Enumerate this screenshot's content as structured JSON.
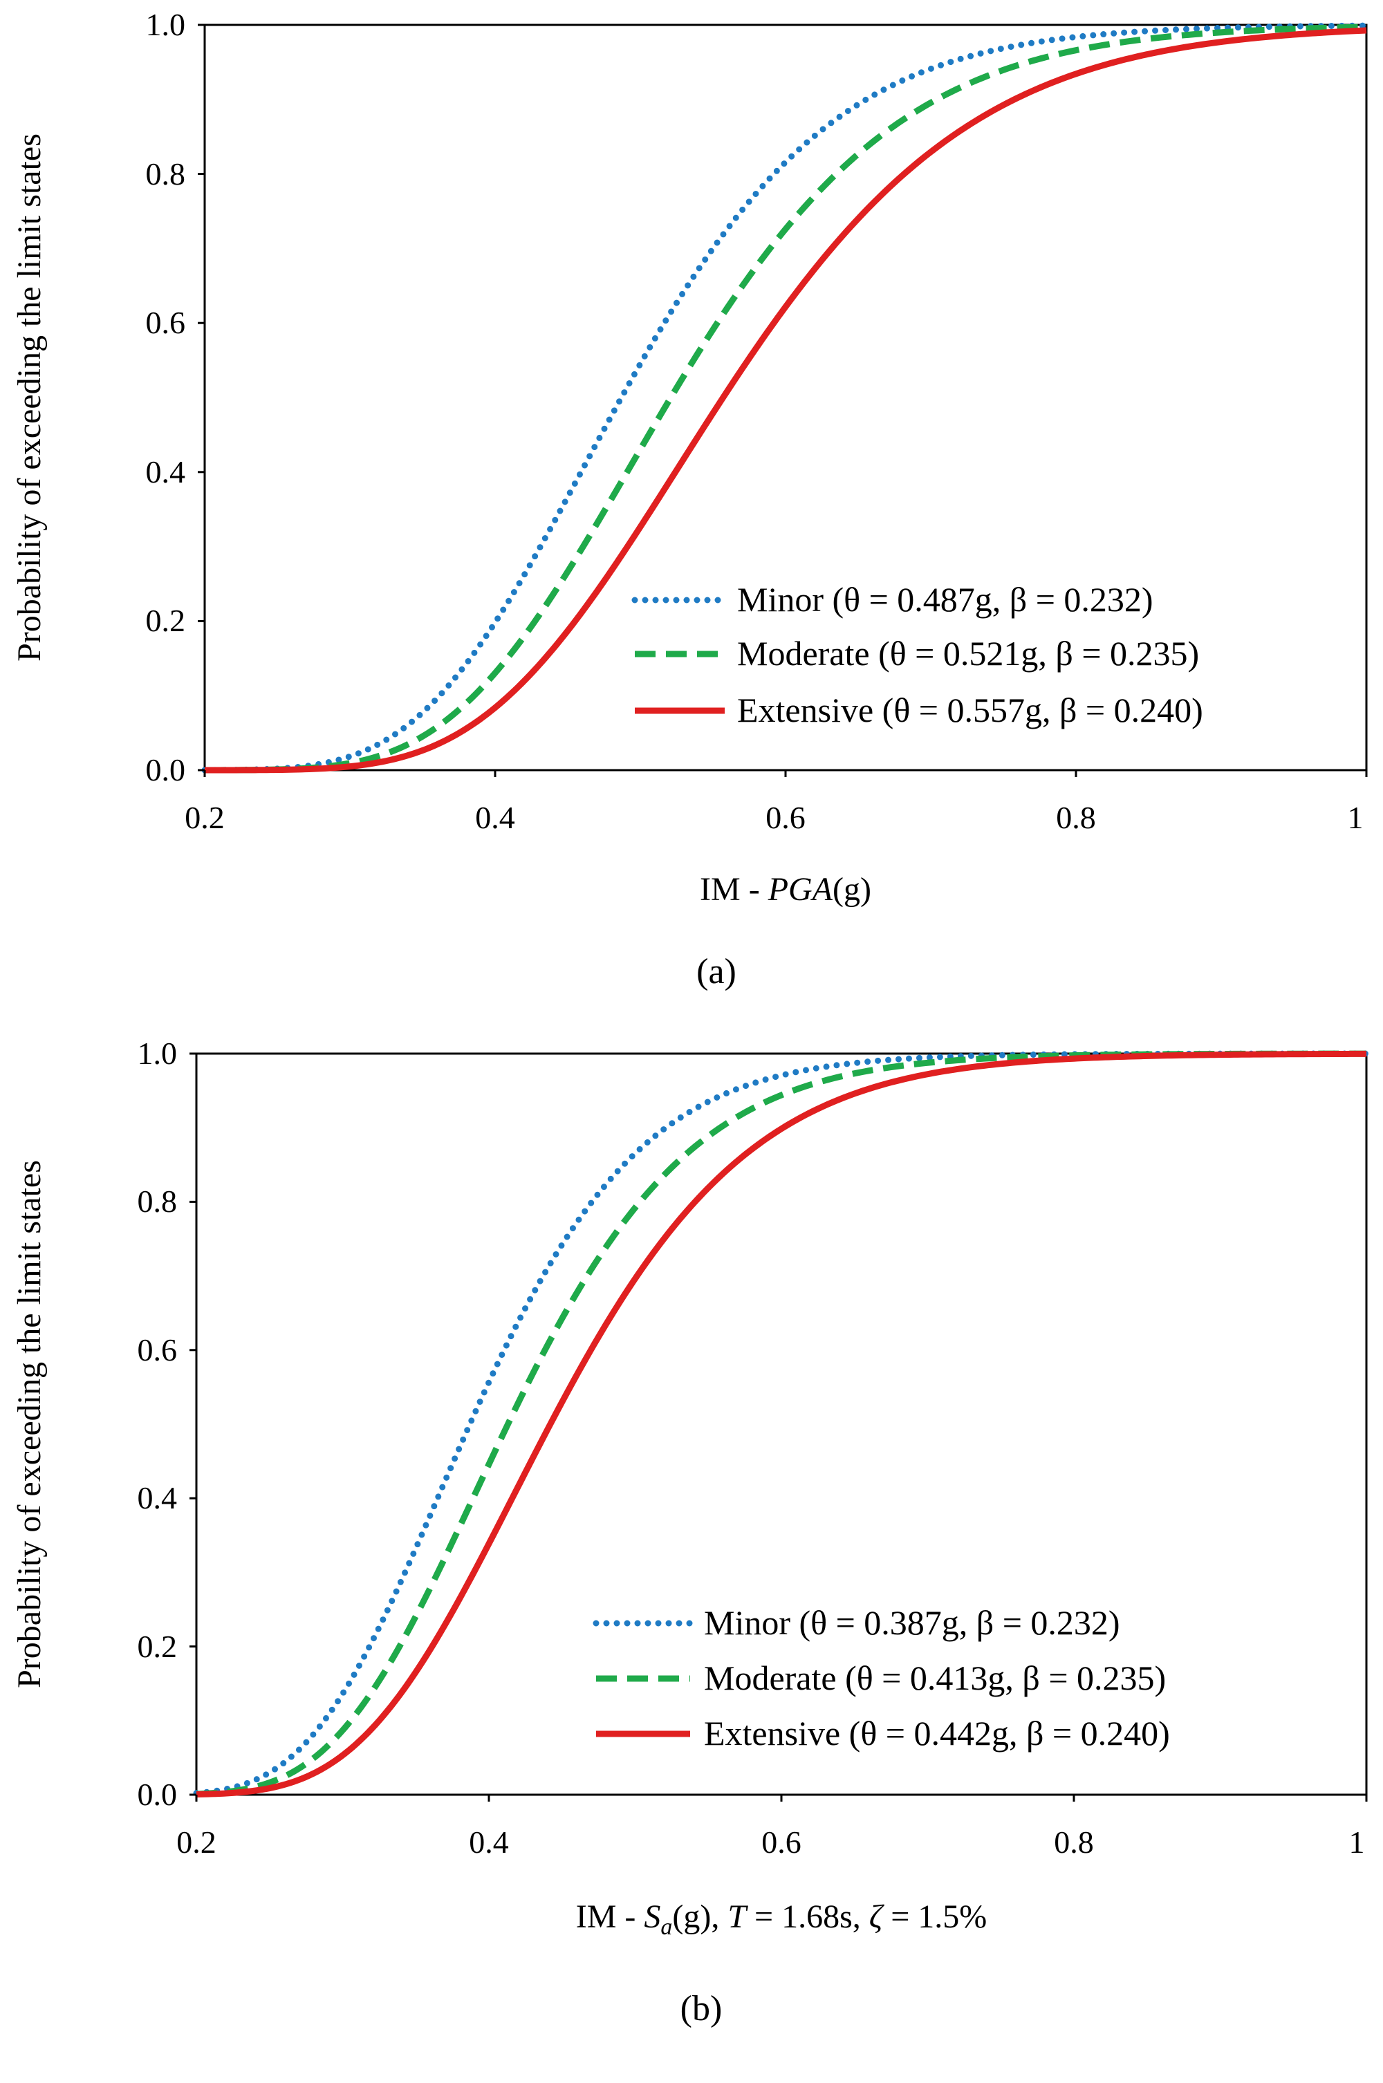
{
  "chart_data": [
    {
      "type": "line",
      "panel": "(a)",
      "caption": "(a)",
      "xlabel_prefix": "IM - ",
      "xlabel_italic": "PGA",
      "xlabel_suffix": "(g)",
      "ylabel": "Probability of exceeding the limit states",
      "xlim": [
        0.2,
        1.0
      ],
      "ylim": [
        0.0,
        1.0
      ],
      "xticks": [
        "0.2",
        "0.4",
        "0.6",
        "0.8",
        "1"
      ],
      "yticks": [
        "0.0",
        "0.2",
        "0.4",
        "0.6",
        "0.8",
        "1.0"
      ],
      "legend_position": "bottom-right",
      "series": [
        {
          "name": "Minor",
          "label": "Minor (θ = 0.487g, β = 0.232)",
          "theta": 0.487,
          "beta": 0.232,
          "color": "#1f7bc4",
          "style": "dotted"
        },
        {
          "name": "Moderate",
          "label": "Moderate (θ = 0.521g, β = 0.235)",
          "theta": 0.521,
          "beta": 0.235,
          "color": "#1faa4a",
          "style": "dashed"
        },
        {
          "name": "Extensive",
          "label": "Extensive (θ = 0.557g, β = 0.240)",
          "theta": 0.557,
          "beta": 0.24,
          "color": "#e02020",
          "style": "solid"
        }
      ]
    },
    {
      "type": "line",
      "panel": "(b)",
      "caption": "(b)",
      "xlabel_prefix": "IM - ",
      "xlabel_italic": "S",
      "xlabel_sub": "a",
      "xlabel_suffix": "(g), ",
      "xlabel_T": "T",
      "xlabel_Tval": " = 1.68s, ",
      "xlabel_zeta": "ζ",
      "xlabel_zetaval": " = 1.5%",
      "ylabel": "Probability of exceeding the limit states",
      "xlim": [
        0.2,
        1.0
      ],
      "ylim": [
        0.0,
        1.0
      ],
      "xticks": [
        "0.2",
        "0.4",
        "0.6",
        "0.8",
        "1"
      ],
      "yticks": [
        "0.0",
        "0.2",
        "0.4",
        "0.6",
        "0.8",
        "1.0"
      ],
      "legend_position": "bottom-right",
      "series": [
        {
          "name": "Minor",
          "label": "Minor (θ = 0.387g, β = 0.232)",
          "theta": 0.387,
          "beta": 0.232,
          "color": "#1f7bc4",
          "style": "dotted"
        },
        {
          "name": "Moderate",
          "label": "Moderate (θ = 0.413g, β = 0.235)",
          "theta": 0.413,
          "beta": 0.235,
          "color": "#1faa4a",
          "style": "dashed"
        },
        {
          "name": "Extensive",
          "label": "Extensive (θ = 0.442g, β = 0.240)",
          "theta": 0.442,
          "beta": 0.24,
          "color": "#e02020",
          "style": "solid"
        }
      ]
    }
  ]
}
